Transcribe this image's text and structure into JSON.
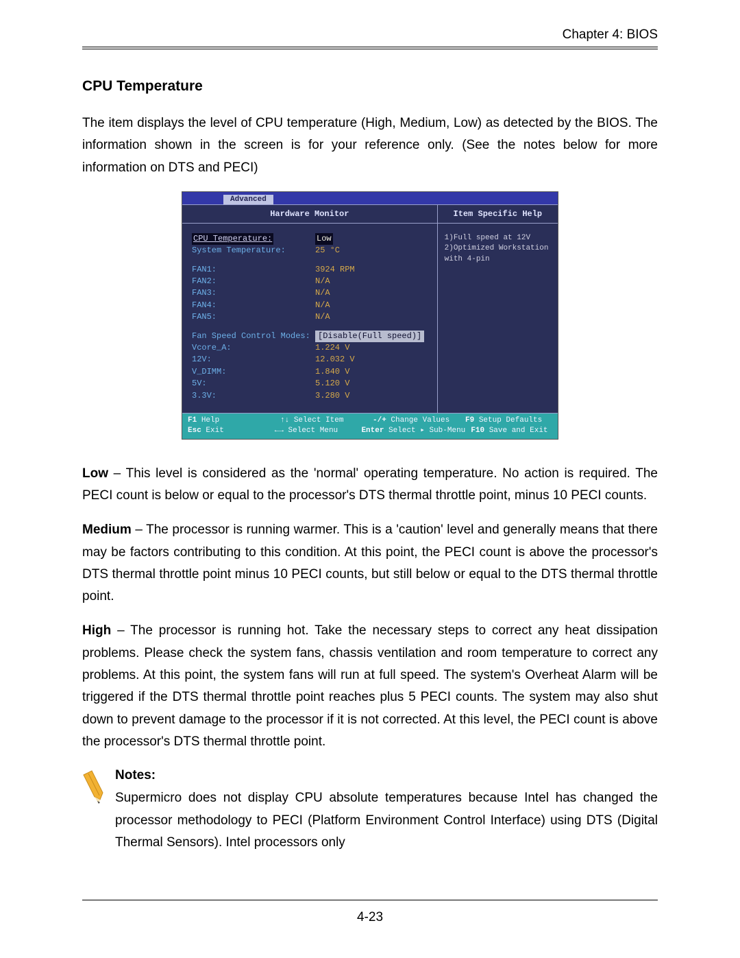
{
  "header": {
    "chapter": "Chapter 4: BIOS"
  },
  "section": {
    "title": "CPU Temperature"
  },
  "intro": "The item displays the level of CPU temperature (High, Medium, Low) as detected by the BIOS. The information shown in the screen is for your reference only. (See the notes below for more information on DTS and PECI)",
  "bios": {
    "tab": "Advanced",
    "left_title": "Hardware Monitor",
    "right_title": "Item Specific Help",
    "help_lines": [
      "1)Full speed at 12V",
      "2)Optimized Workstation",
      "  with 4-pin"
    ],
    "rows": [
      {
        "label": "CPU  Temperature:",
        "value": "Low",
        "label_hl": true,
        "val_hl": true
      },
      {
        "label": "System Temperature:",
        "value": "25 °C"
      },
      {
        "spacer": true
      },
      {
        "label": "FAN1:",
        "value": "3924 RPM"
      },
      {
        "label": "FAN2:",
        "value": "N/A"
      },
      {
        "label": "FAN3:",
        "value": "N/A"
      },
      {
        "label": "FAN4:",
        "value": "N/A"
      },
      {
        "label": "FAN5:",
        "value": "N/A"
      },
      {
        "spacer": true
      },
      {
        "label": "Fan Speed Control Modes:",
        "value": "[Disable(Full speed)]",
        "pill": true
      },
      {
        "label": "Vcore_A:",
        "value": "1.224 V"
      },
      {
        "label": "12V:",
        "value": "12.032 V"
      },
      {
        "label": "V_DIMM:",
        "value": "1.840 V"
      },
      {
        "label": "5V:",
        "value": "5.120 V"
      },
      {
        "label": "3.3V:",
        "value": "3.280 V"
      }
    ],
    "footer": {
      "line1": [
        {
          "k": "F1",
          "t": "Help"
        },
        {
          "k": "↑↓",
          "t": "Select Item"
        },
        {
          "k": "-/+",
          "t": "Change Values"
        },
        {
          "k": "F9",
          "t": "Setup Defaults"
        }
      ],
      "line2": [
        {
          "k": "Esc",
          "t": "Exit"
        },
        {
          "k": "←→",
          "t": "Select Menu"
        },
        {
          "k": "Enter",
          "t": "Select ▸ Sub-Menu"
        },
        {
          "k": "F10",
          "t": "Save and Exit"
        }
      ]
    }
  },
  "levels": {
    "low_head": "Low",
    "low": " – This level is considered as the 'normal' operating temperature. No action is required. The PECI count is below or equal to the processor's DTS thermal throttle point, minus 10 PECI counts.",
    "med_head": "Medium",
    "med": " – The processor is running warmer. This is a 'caution' level and generally means that there may be factors contributing to this condition. At this point, the PECI count is above the processor's DTS thermal throttle point minus 10 PECI counts, but still below or equal to the DTS thermal throttle point.",
    "high_head": "High",
    "high": " – The processor is running hot. Take the necessary steps to correct any heat dissipation problems. Please check the system fans, chassis ventilation and room temperature to correct any problems. At this point, the system fans will run at full speed. The system's Overheat Alarm will be triggered if the DTS thermal throttle point reaches plus 5 PECI counts. The system may also shut down to prevent damage to the processor if it is not corrected. At this level, the PECI count is above the processor's DTS thermal throttle point."
  },
  "notes": {
    "head": "Notes:",
    "body": "Supermicro does not display CPU absolute temperatures because Intel has changed the processor methodology to PECI (Platform Environment Control Interface) using DTS (Digital Thermal Sensors). Intel processors only"
  },
  "footer": {
    "page": "4-23"
  },
  "colors": {
    "bios_bg": "#2a2f58",
    "bios_tabbar": "#3338a8",
    "bios_label": "#6db0e8",
    "bios_value": "#d6a94a",
    "bios_footer": "#2fa8a8",
    "pencil": "#f2b233",
    "pencil_tip": "#f6e3b4"
  }
}
